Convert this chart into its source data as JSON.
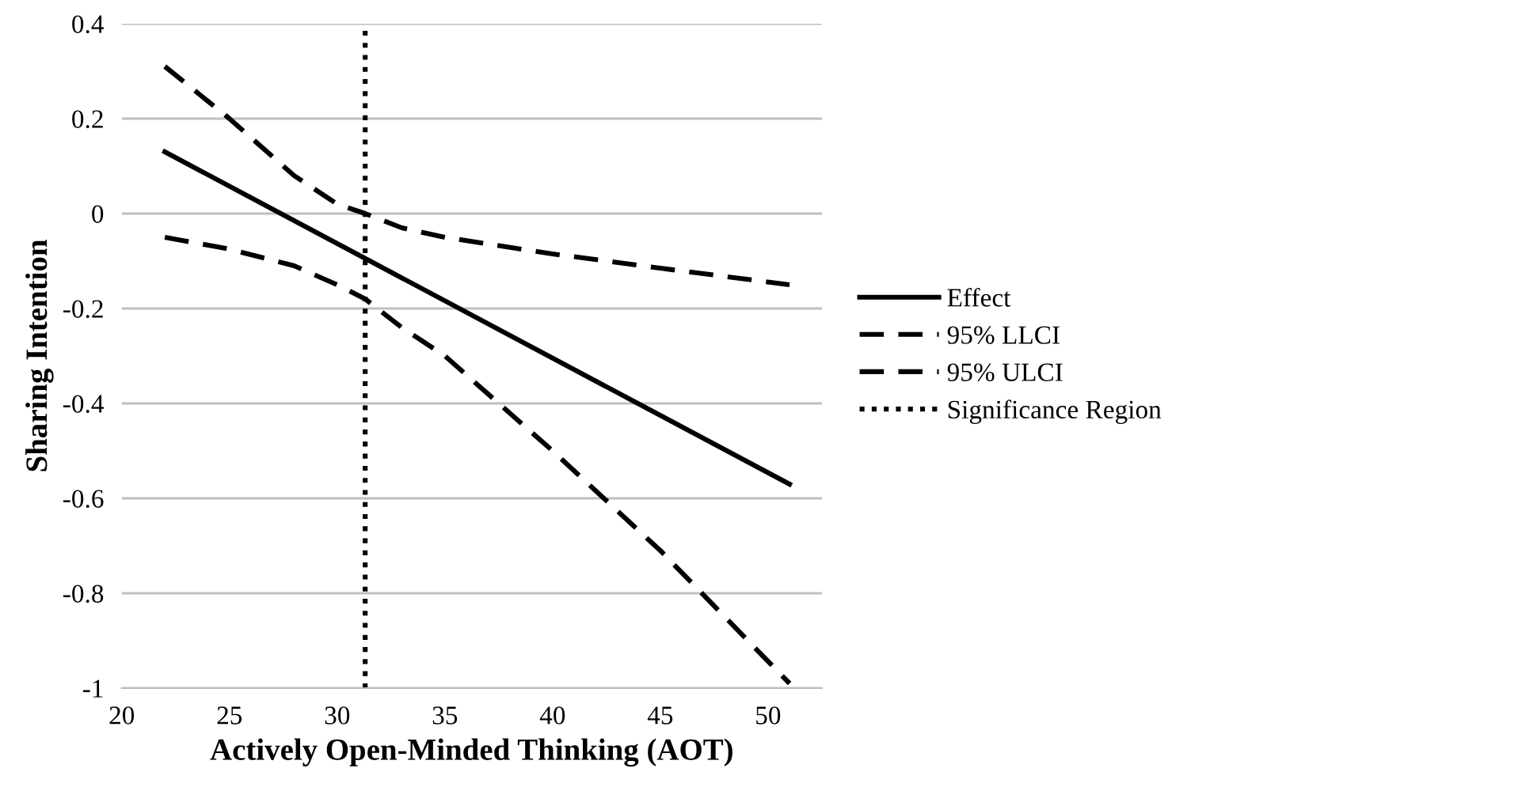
{
  "chart_data": {
    "type": "line",
    "xlabel": "Actively Open-Minded Thinking (AOT)",
    "ylabel": "Sharing Intention",
    "series": [
      {
        "name": "Effect",
        "color": "#000000",
        "line_style": "solid",
        "x": [
          22,
          51
        ],
        "values": [
          0.13,
          -0.57
        ]
      },
      {
        "name": "95% LLCI",
        "color": "#000000",
        "line_style": "dashed",
        "x": [
          22,
          25,
          28,
          30,
          31.3,
          33,
          35,
          40,
          45,
          51
        ],
        "values": [
          0.31,
          0.2,
          0.08,
          0.02,
          0.0,
          -0.03,
          -0.05,
          -0.085,
          -0.115,
          -0.15
        ]
      },
      {
        "name": "95% ULCI",
        "color": "#000000",
        "line_style": "dashed",
        "x": [
          22,
          25,
          28,
          30,
          31.3,
          33,
          35,
          40,
          45,
          51
        ],
        "values": [
          -0.05,
          -0.075,
          -0.11,
          -0.15,
          -0.18,
          -0.24,
          -0.3,
          -0.5,
          -0.71,
          -0.99
        ]
      },
      {
        "name": "Significance Region",
        "color": "#000000",
        "line_style": "dotted",
        "x": [
          31.3,
          31.3
        ],
        "values": [
          -1,
          0.4
        ]
      }
    ],
    "xlim": [
      20,
      52.5
    ],
    "xticks": [
      20,
      25,
      30,
      35,
      40,
      45,
      50
    ],
    "ylim": [
      -1,
      0.4
    ],
    "yticks": [
      -1,
      -0.8,
      -0.6,
      -0.4,
      -0.2,
      0,
      0.2,
      0.4
    ],
    "grid": "y",
    "legend": "right",
    "marker": "none"
  }
}
